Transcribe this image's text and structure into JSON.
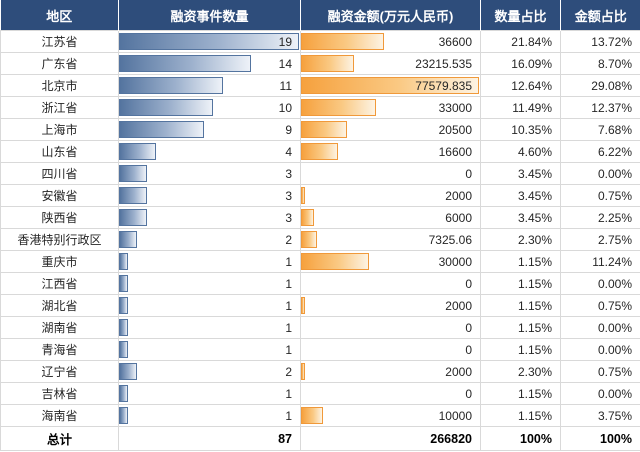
{
  "table": {
    "columns": [
      {
        "label": "地区"
      },
      {
        "label": "融资事件数量"
      },
      {
        "label": "融资金额(万元人民币)"
      },
      {
        "label": "数量占比"
      },
      {
        "label": "金额占比"
      }
    ],
    "rows": [
      {
        "region": "江苏省",
        "count": 19,
        "amount": "36600",
        "count_pct": "21.84%",
        "amount_pct": "13.72%"
      },
      {
        "region": "广东省",
        "count": 14,
        "amount": "23215.535",
        "count_pct": "16.09%",
        "amount_pct": "8.70%"
      },
      {
        "region": "北京市",
        "count": 11,
        "amount": "77579.835",
        "count_pct": "12.64%",
        "amount_pct": "29.08%"
      },
      {
        "region": "浙江省",
        "count": 10,
        "amount": "33000",
        "count_pct": "11.49%",
        "amount_pct": "12.37%"
      },
      {
        "region": "上海市",
        "count": 9,
        "amount": "20500",
        "count_pct": "10.35%",
        "amount_pct": "7.68%"
      },
      {
        "region": "山东省",
        "count": 4,
        "amount": "16600",
        "count_pct": "4.60%",
        "amount_pct": "6.22%"
      },
      {
        "region": "四川省",
        "count": 3,
        "amount": "0",
        "count_pct": "3.45%",
        "amount_pct": "0.00%"
      },
      {
        "region": "安徽省",
        "count": 3,
        "amount": "2000",
        "count_pct": "3.45%",
        "amount_pct": "0.75%"
      },
      {
        "region": "陕西省",
        "count": 3,
        "amount": "6000",
        "count_pct": "3.45%",
        "amount_pct": "2.25%"
      },
      {
        "region": "香港特别行政区",
        "count": 2,
        "amount": "7325.06",
        "count_pct": "2.30%",
        "amount_pct": "2.75%"
      },
      {
        "region": "重庆市",
        "count": 1,
        "amount": "30000",
        "count_pct": "1.15%",
        "amount_pct": "11.24%"
      },
      {
        "region": "江西省",
        "count": 1,
        "amount": "0",
        "count_pct": "1.15%",
        "amount_pct": "0.00%"
      },
      {
        "region": "湖北省",
        "count": 1,
        "amount": "2000",
        "count_pct": "1.15%",
        "amount_pct": "0.75%"
      },
      {
        "region": "湖南省",
        "count": 1,
        "amount": "0",
        "count_pct": "1.15%",
        "amount_pct": "0.00%"
      },
      {
        "region": "青海省",
        "count": 1,
        "amount": "0",
        "count_pct": "1.15%",
        "amount_pct": "0.00%"
      },
      {
        "region": "辽宁省",
        "count": 2,
        "amount": "2000",
        "count_pct": "2.30%",
        "amount_pct": "0.75%"
      },
      {
        "region": "吉林省",
        "count": 1,
        "amount": "0",
        "count_pct": "1.15%",
        "amount_pct": "0.00%"
      },
      {
        "region": "海南省",
        "count": 1,
        "amount": "10000",
        "count_pct": "1.15%",
        "amount_pct": "3.75%"
      }
    ],
    "total": {
      "label": "总计",
      "count": "87",
      "amount": "266820",
      "count_pct": "100%",
      "amount_pct": "100%"
    }
  },
  "colors": {
    "header_bg": "#2e4d7b",
    "header_text": "#ffffff",
    "bar_blue": "#54749f",
    "bar_orange": "#f6a13e",
    "grid_line": "#d9d9d9",
    "cell_text": "#262626"
  },
  "chart_data": {
    "type": "table",
    "title": "",
    "columns": [
      "地区",
      "融资事件数量",
      "融资金额(万元人民币)",
      "数量占比",
      "金额占比"
    ],
    "rows": [
      [
        "江苏省",
        19,
        36600,
        "21.84%",
        "13.72%"
      ],
      [
        "广东省",
        14,
        23215.535,
        "16.09%",
        "8.70%"
      ],
      [
        "北京市",
        11,
        77579.835,
        "12.64%",
        "29.08%"
      ],
      [
        "浙江省",
        10,
        33000,
        "11.49%",
        "12.37%"
      ],
      [
        "上海市",
        9,
        20500,
        "10.35%",
        "7.68%"
      ],
      [
        "山东省",
        4,
        16600,
        "4.60%",
        "6.22%"
      ],
      [
        "四川省",
        3,
        0,
        "3.45%",
        "0.00%"
      ],
      [
        "安徽省",
        3,
        2000,
        "3.45%",
        "0.75%"
      ],
      [
        "陕西省",
        3,
        6000,
        "3.45%",
        "2.25%"
      ],
      [
        "香港特别行政区",
        2,
        7325.06,
        "2.30%",
        "2.75%"
      ],
      [
        "重庆市",
        1,
        30000,
        "1.15%",
        "11.24%"
      ],
      [
        "江西省",
        1,
        0,
        "1.15%",
        "0.00%"
      ],
      [
        "湖北省",
        1,
        2000,
        "1.15%",
        "0.75%"
      ],
      [
        "湖南省",
        1,
        0,
        "1.15%",
        "0.00%"
      ],
      [
        "青海省",
        1,
        0,
        "1.15%",
        "0.00%"
      ],
      [
        "辽宁省",
        2,
        2000,
        "2.30%",
        "0.75%"
      ],
      [
        "吉林省",
        1,
        0,
        "1.15%",
        "0.00%"
      ],
      [
        "海南省",
        1,
        10000,
        "1.15%",
        "3.75%"
      ]
    ],
    "total_row": [
      "总计",
      87,
      266820,
      "100%",
      "100%"
    ],
    "bar_columns": [
      {
        "column": "融资事件数量",
        "style": "blue gradient data bar",
        "max": 19
      },
      {
        "column": "融资金额(万元人民币)",
        "style": "orange gradient data bar",
        "max": 77579.835
      }
    ],
    "legend_position": "none",
    "grid": true
  }
}
